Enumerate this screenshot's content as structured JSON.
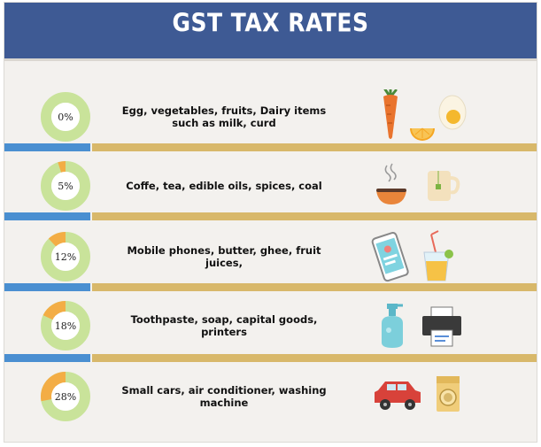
{
  "title": "GST TAX RATES",
  "colors": {
    "header": "#3e5a94",
    "donut_ring": "#c9e39a",
    "donut_slice": "#f3ad45",
    "bar_blue": "#4a8fd1",
    "bar_gold": "#d8b86a"
  },
  "rates": [
    {
      "label": "0%",
      "value": 0,
      "description": "Egg, vegetables, fruits, Dairy items such as milk, curd",
      "icons": [
        "carrot-icon",
        "orange-icon",
        "egg-icon"
      ]
    },
    {
      "label": "5%",
      "value": 5,
      "description": "Coffe, tea, edible oils, spices, coal",
      "icons": [
        "coffee-bowl-icon",
        "tea-cup-icon"
      ]
    },
    {
      "label": "12%",
      "value": 12,
      "description": "Mobile phones, butter, ghee, fruit juices,",
      "icons": [
        "mobile-phone-icon",
        "juice-glass-icon"
      ]
    },
    {
      "label": "18%",
      "value": 18,
      "description": "Toothpaste, soap, capital goods, printers",
      "icons": [
        "soap-dispenser-icon",
        "printer-icon"
      ]
    },
    {
      "label": "28%",
      "value": 28,
      "description": "Small cars, air conditioner, washing machine",
      "icons": [
        "car-icon",
        "washing-machine-icon"
      ]
    }
  ]
}
